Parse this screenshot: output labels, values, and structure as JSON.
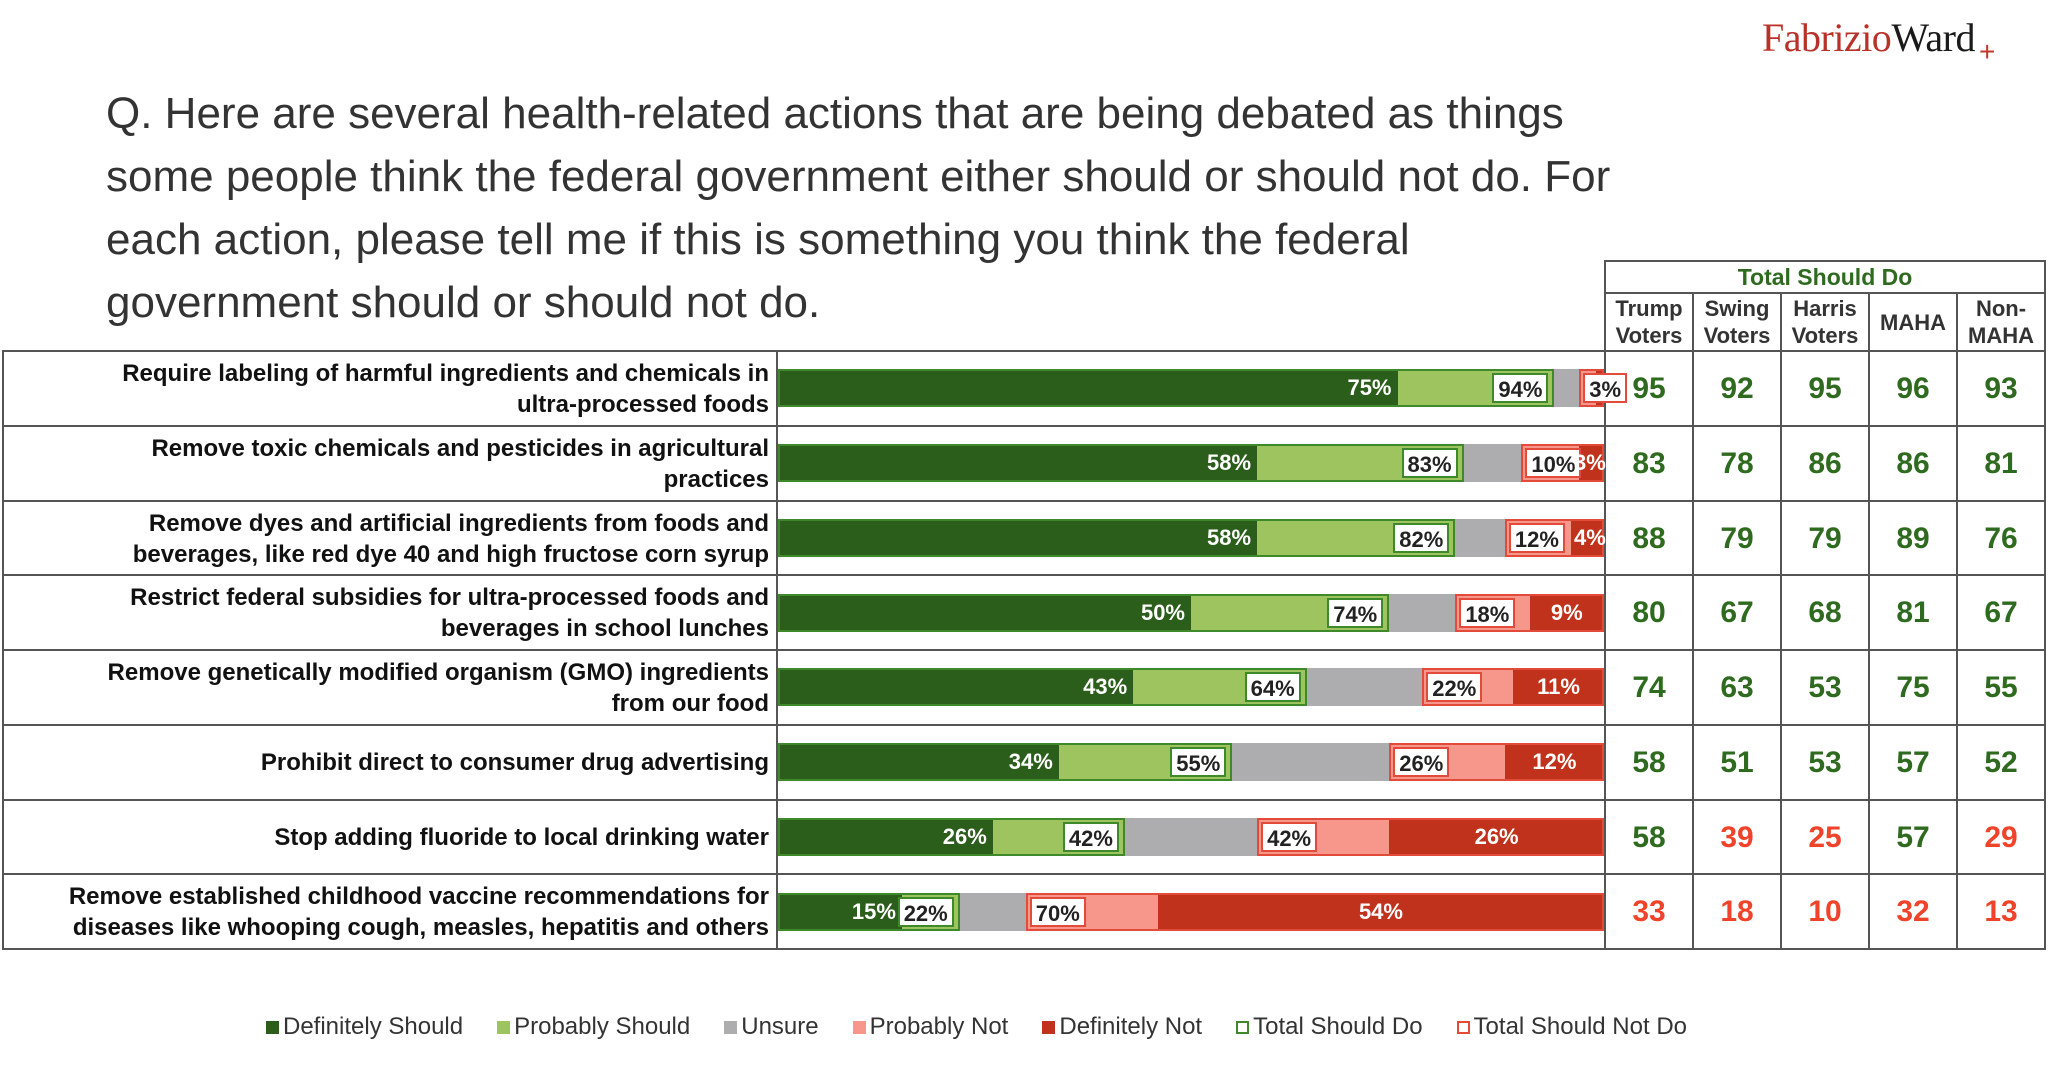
{
  "logo": {
    "part1": "Fabrizio",
    "part2": "Ward",
    "mark": "+"
  },
  "question": {
    "lines": [
      "Q. Here are several health-related actions that are being debated as things",
      "some people think the federal government either should or should not do. For",
      "each action, please tell me if this is something you think the federal",
      "government should or should not do."
    ]
  },
  "colors": {
    "definitely_should": "#2b5e1a",
    "probably_should": "#9dc45f",
    "unsure": "#adadb0",
    "probably_not": "#f7968a",
    "definitely_not": "#c0321b",
    "total_should_outline": "#3e8a2a",
    "total_not_outline": "#e24a3a",
    "table_positive": "#2e6b1f",
    "table_negative": "#f0442a"
  },
  "table": {
    "title": "Total Should Do",
    "columns": [
      "Trump Voters",
      "Swing Voters",
      "Harris Voters",
      "MAHA",
      "Non-MAHA"
    ],
    "column_lines": [
      [
        "Trump",
        "Voters"
      ],
      [
        "Swing",
        "Voters"
      ],
      [
        "Harris",
        "Voters"
      ],
      [
        "MAHA"
      ],
      [
        "Non-",
        "MAHA"
      ]
    ]
  },
  "chart_data": {
    "type": "bar",
    "orientation": "horizontal-stacked",
    "title": "Q. Here are several health-related actions that are being debated as things some people think the federal government either should or should not do. For each action, please tell me if this is something you think the federal government should or should not do.",
    "xlim": [
      0,
      100
    ],
    "unit": "%",
    "legend": {
      "position": "bottom",
      "entries": [
        "Definitely Should",
        "Probably Should",
        "Unsure",
        "Probably Not",
        "Definitely Not",
        "Total Should Do",
        "Total Should Not Do"
      ]
    },
    "categories": [
      "Require labeling of harmful ingredients and chemicals in ultra-processed foods",
      "Remove toxic chemicals and pesticides in agricultural practices",
      "Remove dyes and artificial ingredients from foods and beverages, like red dye 40 and high fructose corn syrup",
      "Restrict federal subsidies for ultra-processed foods and beverages in school lunches",
      "Remove genetically modified organism (GMO) ingredients from our food",
      "Prohibit direct to consumer drug advertising",
      "Stop adding fluoride to local drinking water",
      "Remove established childhood vaccine recommendations for diseases like whooping cough, measles, hepatitis and others"
    ],
    "category_lines": [
      [
        "Require labeling of harmful ingredients and chemicals in",
        "ultra-processed foods"
      ],
      [
        "Remove toxic chemicals and pesticides in agricultural",
        "practices"
      ],
      [
        "Remove dyes and artificial ingredients from foods and",
        "beverages, like red dye 40 and high fructose corn syrup"
      ],
      [
        "Restrict federal subsidies for ultra-processed foods and",
        "beverages in school lunches"
      ],
      [
        "Remove genetically modified organism (GMO) ingredients",
        "from our food"
      ],
      [
        "Prohibit direct to consumer drug advertising"
      ],
      [
        "Stop adding fluoride to local drinking water"
      ],
      [
        "Remove established childhood vaccine recommendations for",
        "diseases like whooping cough, measles, hepatitis and others"
      ]
    ],
    "series": [
      {
        "name": "Definitely Should",
        "values": [
          75,
          58,
          58,
          50,
          43,
          34,
          26,
          15
        ]
      },
      {
        "name": "Probably Should",
        "values": [
          19,
          25,
          24,
          24,
          21,
          21,
          16,
          7
        ]
      },
      {
        "name": "Unsure",
        "values": [
          3,
          7,
          6,
          8,
          14,
          19,
          16,
          8
        ]
      },
      {
        "name": "Probably Not",
        "values": [
          2,
          7,
          8,
          9,
          11,
          14,
          16,
          16
        ]
      },
      {
        "name": "Definitely Not",
        "values": [
          1,
          3,
          4,
          9,
          11,
          12,
          26,
          54
        ]
      }
    ],
    "labels": {
      "definitely_should": [
        "75%",
        "58%",
        "58%",
        "50%",
        "43%",
        "34%",
        "26%",
        "15%"
      ],
      "total_should_do": [
        "94%",
        "83%",
        "82%",
        "74%",
        "64%",
        "55%",
        "42%",
        "22%"
      ],
      "total_should_not_do": [
        "3%",
        "10%",
        "12%",
        "18%",
        "22%",
        "26%",
        "42%",
        "70%"
      ],
      "definitely_not": [
        "",
        "3%",
        "4%",
        "9%",
        "11%",
        "12%",
        "26%",
        "54%"
      ]
    },
    "total_should_do": [
      94,
      83,
      82,
      74,
      64,
      55,
      42,
      22
    ],
    "total_should_not_do": [
      3,
      10,
      12,
      18,
      22,
      26,
      42,
      70
    ],
    "subgroup_total_should_do": {
      "columns": [
        "Trump Voters",
        "Swing Voters",
        "Harris Voters",
        "MAHA",
        "Non-MAHA"
      ],
      "rows": [
        [
          95,
          92,
          95,
          96,
          93
        ],
        [
          83,
          78,
          86,
          86,
          81
        ],
        [
          88,
          79,
          79,
          89,
          76
        ],
        [
          80,
          67,
          68,
          81,
          67
        ],
        [
          74,
          63,
          53,
          75,
          55
        ],
        [
          58,
          51,
          53,
          57,
          52
        ],
        [
          58,
          39,
          25,
          57,
          29
        ],
        [
          33,
          18,
          10,
          32,
          13
        ]
      ],
      "highlight_rule": "values below 50 shown in red"
    }
  }
}
